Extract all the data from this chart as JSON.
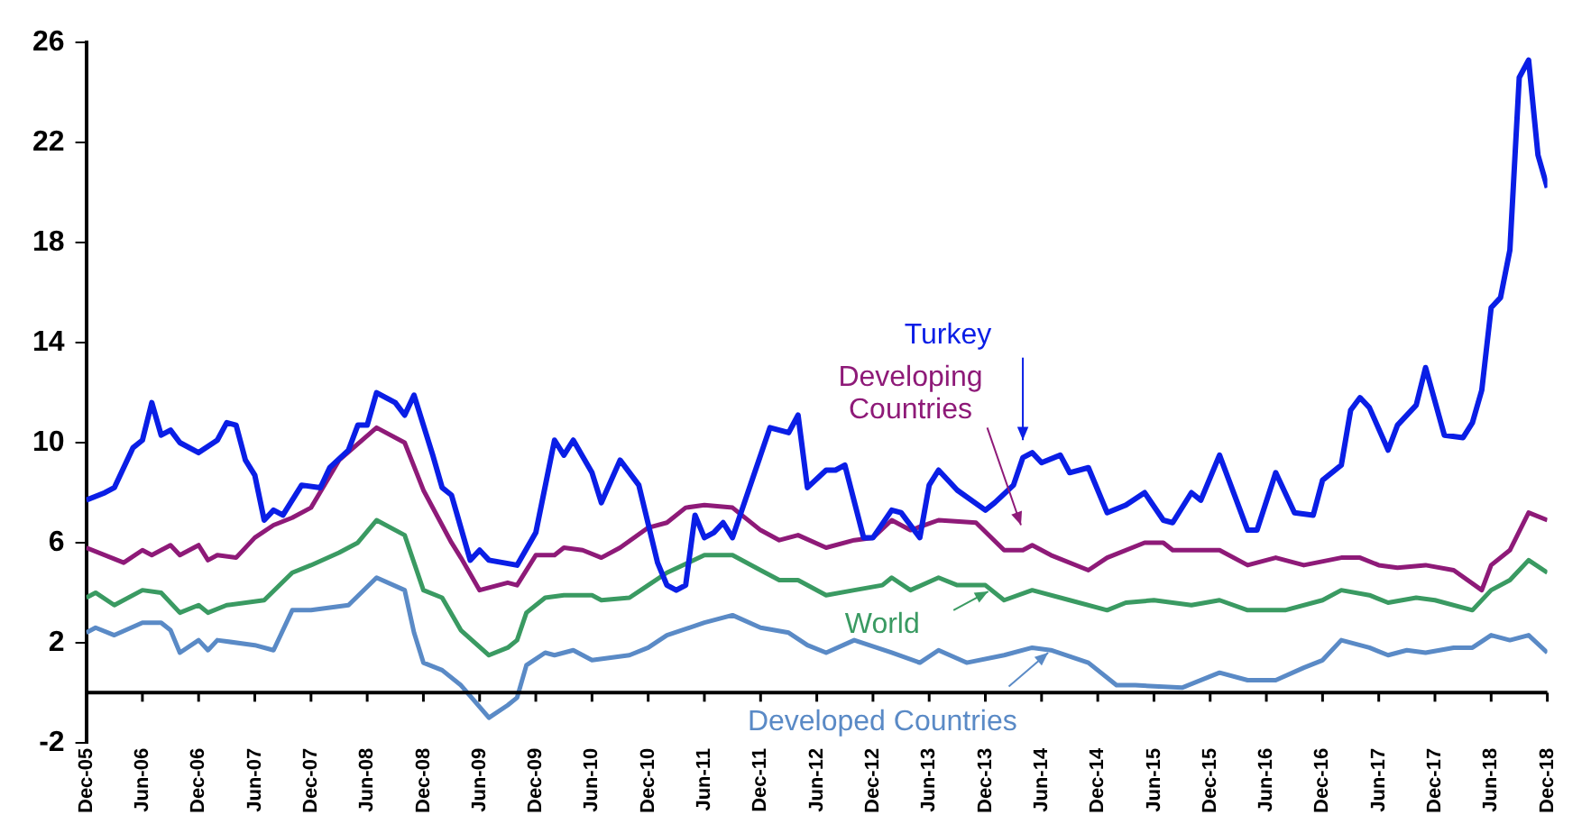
{
  "chart_data": {
    "type": "line",
    "xlim": [
      "2005-12",
      "2018-12"
    ],
    "xticks": [
      {
        "value": "2005-12",
        "label": "Dec-05"
      },
      {
        "value": "2006-06",
        "label": "Jun-06"
      },
      {
        "value": "2006-12",
        "label": "Dec-06"
      },
      {
        "value": "2007-06",
        "label": "Jun-07"
      },
      {
        "value": "2007-12",
        "label": "Dec-07"
      },
      {
        "value": "2008-06",
        "label": "Jun-08"
      },
      {
        "value": "2008-12",
        "label": "Dec-08"
      },
      {
        "value": "2009-06",
        "label": "Jun-09"
      },
      {
        "value": "2009-12",
        "label": "Dec-09"
      },
      {
        "value": "2010-06",
        "label": "Jun-10"
      },
      {
        "value": "2010-12",
        "label": "Dec-10"
      },
      {
        "value": "2011-06",
        "label": "Jun-11"
      },
      {
        "value": "2011-12",
        "label": "Dec-11"
      },
      {
        "value": "2012-06",
        "label": "Jun-12"
      },
      {
        "value": "2012-12",
        "label": "Dec-12"
      },
      {
        "value": "2013-06",
        "label": "Jun-13"
      },
      {
        "value": "2013-12",
        "label": "Dec-13"
      },
      {
        "value": "2014-06",
        "label": "Jun-14"
      },
      {
        "value": "2014-12",
        "label": "Dec-14"
      },
      {
        "value": "2015-06",
        "label": "Jun-15"
      },
      {
        "value": "2015-12",
        "label": "Dec-15"
      },
      {
        "value": "2016-06",
        "label": "Jun-16"
      },
      {
        "value": "2016-12",
        "label": "Dec-16"
      },
      {
        "value": "2017-06",
        "label": "Jun-17"
      },
      {
        "value": "2017-12",
        "label": "Dec-17"
      },
      {
        "value": "2018-06",
        "label": "Jun-18"
      },
      {
        "value": "2018-12",
        "label": "Dec-18"
      }
    ],
    "ylim": [
      -2,
      26
    ],
    "yticks": [
      -2,
      2,
      6,
      10,
      14,
      18,
      22,
      26
    ],
    "grid": false,
    "legend": false,
    "marker": "none",
    "line_style": "solid",
    "series": [
      {
        "name": "Turkey",
        "color": "#0a1ee6",
        "x": [
          "2005-12",
          "2006-02",
          "2006-03",
          "2006-05",
          "2006-06",
          "2006-07",
          "2006-08",
          "2006-09",
          "2006-10",
          "2006-12",
          "2007-02",
          "2007-03",
          "2007-04",
          "2007-05",
          "2007-06",
          "2007-07",
          "2007-08",
          "2007-09",
          "2007-11",
          "2008-01",
          "2008-02",
          "2008-04",
          "2008-05",
          "2008-06",
          "2008-07",
          "2008-09",
          "2008-10",
          "2008-11",
          "2008-12",
          "2009-01",
          "2009-02",
          "2009-03",
          "2009-04",
          "2009-05",
          "2009-06",
          "2009-07",
          "2009-10",
          "2009-12",
          "2010-02",
          "2010-03",
          "2010-04",
          "2010-06",
          "2010-07",
          "2010-09",
          "2010-11",
          "2011-01",
          "2011-02",
          "2011-03",
          "2011-04",
          "2011-05",
          "2011-06",
          "2011-07",
          "2011-08",
          "2011-09",
          "2011-12",
          "2012-01",
          "2012-02",
          "2012-03",
          "2012-04",
          "2012-05",
          "2012-07",
          "2012-08",
          "2012-09",
          "2012-11",
          "2012-12",
          "2013-02",
          "2013-03",
          "2013-05",
          "2013-06",
          "2013-07",
          "2013-09",
          "2013-12",
          "2014-01",
          "2014-03",
          "2014-04",
          "2014-05",
          "2014-06",
          "2014-08",
          "2014-09",
          "2014-11",
          "2015-01",
          "2015-03",
          "2015-05",
          "2015-07",
          "2015-08",
          "2015-10",
          "2015-11",
          "2016-01",
          "2016-04",
          "2016-05",
          "2016-07",
          "2016-09",
          "2016-11",
          "2016-12",
          "2017-02",
          "2017-03",
          "2017-04",
          "2017-05",
          "2017-07",
          "2017-08",
          "2017-10",
          "2017-11",
          "2018-01",
          "2018-03",
          "2018-04",
          "2018-05",
          "2018-06",
          "2018-07",
          "2018-08",
          "2018-09",
          "2018-10",
          "2018-11",
          "2018-12"
        ],
        "values": [
          7.7,
          8.0,
          8.2,
          9.8,
          10.1,
          11.6,
          10.3,
          10.5,
          10.0,
          9.6,
          10.1,
          10.8,
          10.7,
          9.3,
          8.7,
          6.9,
          7.3,
          7.1,
          8.3,
          8.2,
          9.0,
          9.7,
          10.7,
          10.7,
          12.0,
          11.6,
          11.1,
          11.9,
          10.7,
          9.5,
          8.2,
          7.9,
          6.6,
          5.3,
          5.7,
          5.3,
          5.1,
          6.4,
          10.1,
          9.5,
          10.1,
          8.8,
          7.6,
          9.3,
          8.3,
          5.2,
          4.3,
          4.1,
          4.3,
          7.1,
          6.2,
          6.4,
          6.8,
          6.2,
          9.5,
          10.6,
          10.5,
          10.4,
          11.1,
          8.2,
          8.9,
          8.9,
          9.1,
          6.2,
          6.2,
          7.3,
          7.2,
          6.2,
          8.3,
          8.9,
          8.1,
          7.3,
          7.6,
          8.3,
          9.4,
          9.6,
          9.2,
          9.5,
          8.8,
          9.0,
          7.2,
          7.5,
          8.0,
          6.9,
          6.8,
          8.0,
          7.7,
          9.5,
          6.5,
          6.5,
          8.8,
          7.2,
          7.1,
          8.5,
          9.1,
          11.3,
          11.8,
          11.4,
          9.7,
          10.7,
          11.5,
          13.0,
          10.3,
          10.2,
          10.8,
          12.1,
          15.4,
          15.8,
          17.7,
          24.6,
          25.3,
          21.5,
          20.2
        ]
      },
      {
        "name": "Developing Countries",
        "color": "#8e1a78",
        "x": [
          "2005-12",
          "2006-04",
          "2006-06",
          "2006-07",
          "2006-09",
          "2006-10",
          "2006-12",
          "2007-01",
          "2007-02",
          "2007-04",
          "2007-06",
          "2007-08",
          "2007-10",
          "2007-12",
          "2008-03",
          "2008-07",
          "2008-10",
          "2008-12",
          "2009-03",
          "2009-04",
          "2009-06",
          "2009-09",
          "2009-10",
          "2009-12",
          "2010-02",
          "2010-03",
          "2010-05",
          "2010-07",
          "2010-09",
          "2010-12",
          "2011-02",
          "2011-04",
          "2011-06",
          "2011-09",
          "2011-12",
          "2012-02",
          "2012-04",
          "2012-07",
          "2012-10",
          "2012-12",
          "2013-02",
          "2013-04",
          "2013-07",
          "2013-11",
          "2014-02",
          "2014-04",
          "2014-05",
          "2014-07",
          "2014-11",
          "2015-01",
          "2015-05",
          "2015-07",
          "2015-08",
          "2016-01",
          "2016-04",
          "2016-07",
          "2016-10",
          "2017-02",
          "2017-04",
          "2017-06",
          "2017-08",
          "2017-11",
          "2018-02",
          "2018-05",
          "2018-06",
          "2018-08",
          "2018-10",
          "2018-12"
        ],
        "values": [
          5.8,
          5.2,
          5.7,
          5.5,
          5.9,
          5.5,
          5.9,
          5.3,
          5.5,
          5.4,
          6.2,
          6.7,
          7.0,
          7.4,
          9.3,
          10.6,
          10.0,
          8.1,
          6.0,
          5.4,
          4.1,
          4.4,
          4.3,
          5.5,
          5.5,
          5.8,
          5.7,
          5.4,
          5.8,
          6.6,
          6.8,
          7.4,
          7.5,
          7.4,
          6.5,
          6.1,
          6.3,
          5.8,
          6.1,
          6.2,
          6.9,
          6.5,
          6.9,
          6.8,
          5.7,
          5.7,
          5.9,
          5.5,
          4.9,
          5.4,
          6.0,
          6.0,
          5.7,
          5.7,
          5.1,
          5.4,
          5.1,
          5.4,
          5.4,
          5.1,
          5.0,
          5.1,
          4.9,
          4.1,
          5.1,
          5.7,
          7.2,
          6.9
        ]
      },
      {
        "name": "World",
        "color": "#3a9a62",
        "x": [
          "2005-12",
          "2006-01",
          "2006-03",
          "2006-06",
          "2006-08",
          "2006-10",
          "2006-12",
          "2007-01",
          "2007-03",
          "2007-07",
          "2007-10",
          "2007-12",
          "2008-03",
          "2008-05",
          "2008-07",
          "2008-10",
          "2008-12",
          "2009-02",
          "2009-04",
          "2009-07",
          "2009-09",
          "2009-10",
          "2009-11",
          "2010-01",
          "2010-03",
          "2010-06",
          "2010-07",
          "2010-10",
          "2010-12",
          "2011-02",
          "2011-06",
          "2011-09",
          "2011-12",
          "2012-02",
          "2012-04",
          "2012-07",
          "2012-10",
          "2013-01",
          "2013-02",
          "2013-04",
          "2013-07",
          "2013-09",
          "2013-12",
          "2014-02",
          "2014-05",
          "2014-09",
          "2015-01",
          "2015-03",
          "2015-06",
          "2015-10",
          "2016-01",
          "2016-04",
          "2016-08",
          "2016-12",
          "2017-02",
          "2017-05",
          "2017-07",
          "2017-10",
          "2017-12",
          "2018-04",
          "2018-06",
          "2018-08",
          "2018-10",
          "2018-12"
        ],
        "values": [
          3.8,
          4.0,
          3.5,
          4.1,
          4.0,
          3.2,
          3.5,
          3.2,
          3.5,
          3.7,
          4.8,
          5.1,
          5.6,
          6.0,
          6.9,
          6.3,
          4.1,
          3.8,
          2.5,
          1.5,
          1.8,
          2.1,
          3.2,
          3.8,
          3.9,
          3.9,
          3.7,
          3.8,
          4.3,
          4.8,
          5.5,
          5.5,
          4.9,
          4.5,
          4.5,
          3.9,
          4.1,
          4.3,
          4.6,
          4.1,
          4.6,
          4.3,
          4.3,
          3.7,
          4.1,
          3.7,
          3.3,
          3.6,
          3.7,
          3.5,
          3.7,
          3.3,
          3.3,
          3.7,
          4.1,
          3.9,
          3.6,
          3.8,
          3.7,
          3.3,
          4.1,
          4.5,
          5.3,
          4.8
        ]
      },
      {
        "name": "Developed Countries",
        "color": "#5a8ac6",
        "x": [
          "2005-12",
          "2006-01",
          "2006-03",
          "2006-06",
          "2006-08",
          "2006-09",
          "2006-10",
          "2006-12",
          "2007-01",
          "2007-02",
          "2007-06",
          "2007-08",
          "2007-10",
          "2007-12",
          "2008-04",
          "2008-07",
          "2008-10",
          "2008-11",
          "2008-12",
          "2009-02",
          "2009-04",
          "2009-07",
          "2009-09",
          "2009-10",
          "2009-11",
          "2010-01",
          "2010-02",
          "2010-04",
          "2010-06",
          "2010-10",
          "2010-12",
          "2011-02",
          "2011-06",
          "2011-09",
          "2011-12",
          "2012-03",
          "2012-05",
          "2012-07",
          "2012-10",
          "2013-02",
          "2013-05",
          "2013-07",
          "2013-10",
          "2014-02",
          "2014-05",
          "2014-07",
          "2014-11",
          "2015-02",
          "2015-04",
          "2015-09",
          "2016-01",
          "2016-04",
          "2016-07",
          "2016-10",
          "2016-12",
          "2017-02",
          "2017-05",
          "2017-07",
          "2017-09",
          "2017-11",
          "2018-02",
          "2018-04",
          "2018-06",
          "2018-08",
          "2018-10",
          "2018-12"
        ],
        "values": [
          2.4,
          2.6,
          2.3,
          2.8,
          2.8,
          2.5,
          1.6,
          2.1,
          1.7,
          2.1,
          1.9,
          1.7,
          3.3,
          3.3,
          3.5,
          4.6,
          4.1,
          2.4,
          1.2,
          0.9,
          0.3,
          -1.0,
          -0.5,
          -0.2,
          1.1,
          1.6,
          1.5,
          1.7,
          1.3,
          1.5,
          1.8,
          2.3,
          2.8,
          3.1,
          2.6,
          2.4,
          1.9,
          1.6,
          2.1,
          1.6,
          1.2,
          1.7,
          1.2,
          1.5,
          1.8,
          1.7,
          1.2,
          0.3,
          0.3,
          0.2,
          0.8,
          0.5,
          0.5,
          1.0,
          1.3,
          2.1,
          1.8,
          1.5,
          1.7,
          1.6,
          1.8,
          1.8,
          2.3,
          2.1,
          2.3,
          1.6
        ]
      }
    ]
  }
}
